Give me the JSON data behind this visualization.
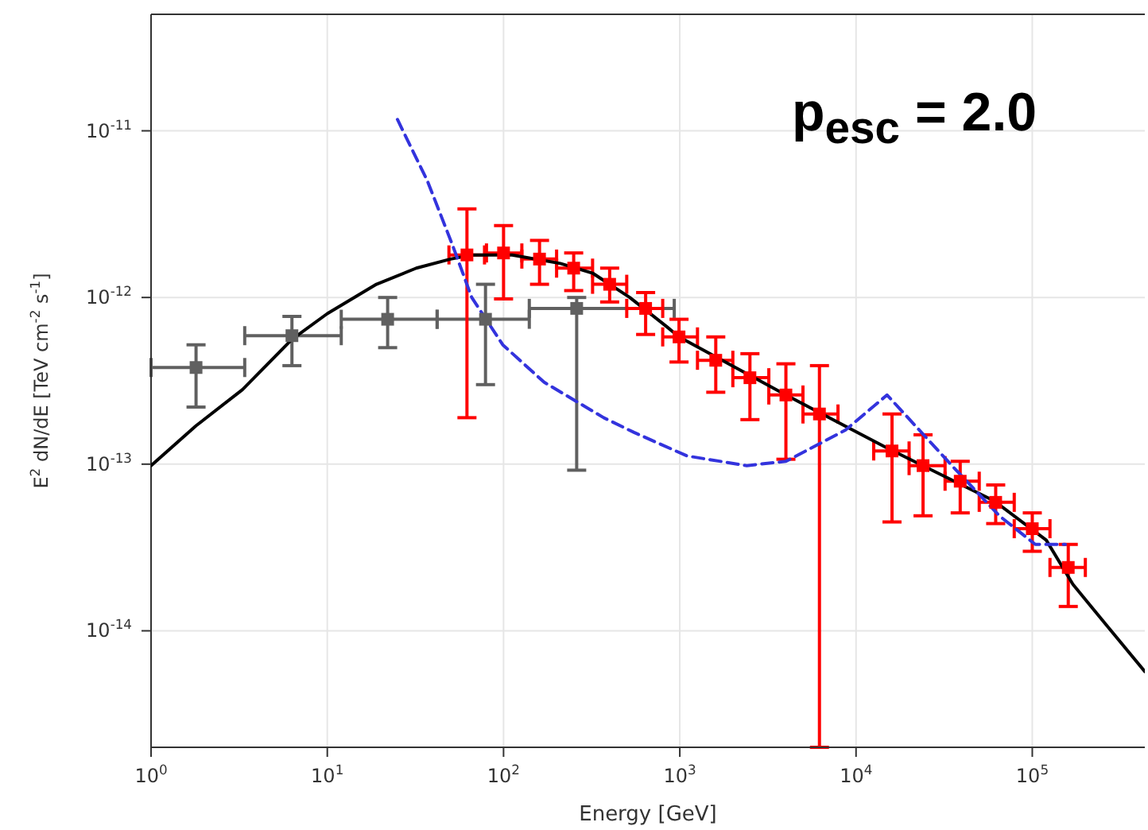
{
  "chart_data": {
    "type": "scatter",
    "xlabel": "Energy [GeV]",
    "ylabel": "E$^{2}$ dN/dE [TeV cm$^{-2}$ s$^{-1}$]",
    "annotations": [
      "p$_{esc}$ = 2.0"
    ],
    "log": "xy",
    "grid": true,
    "xlim": [
      1,
      435000
    ],
    "ylim": [
      2e-15,
      5e-11
    ],
    "xticks": [
      {
        "value": 1,
        "label": "10$^{0}$"
      },
      {
        "value": 10,
        "label": "10$^{1}$"
      },
      {
        "value": 100,
        "label": "10$^{2}$"
      },
      {
        "value": 1000,
        "label": "10$^{3}$"
      },
      {
        "value": 10000,
        "label": "10$^{4}$"
      },
      {
        "value": 100000,
        "label": "10$^{5}$"
      }
    ],
    "yticks": [
      {
        "value": 1e-14,
        "label": "10$^{-14}$"
      },
      {
        "value": 1e-13,
        "label": "10$^{-13}$"
      },
      {
        "value": 1e-12,
        "label": "10$^{-12}$"
      },
      {
        "value": 1e-11,
        "label": "10$^{-11}$"
      }
    ],
    "series": [
      {
        "type": "line",
        "color": "#000000",
        "line_style": "solid",
        "x": [
          1,
          1.8,
          3.3,
          6.3,
          10,
          19,
          32,
          50,
          66,
          112,
          210,
          320,
          520,
          840,
          990,
          4000,
          15000,
          61000,
          120000,
          170000,
          260000,
          435000
        ],
        "values": [
          9.8e-14,
          1.7e-13,
          2.8e-13,
          5.6e-13,
          8e-13,
          1.2e-12,
          1.5e-12,
          1.7e-12,
          1.8e-12,
          1.8e-12,
          1.6e-12,
          1.4e-12,
          1e-12,
          6.7e-13,
          5.8e-13,
          2.6e-13,
          1.25e-13,
          6e-14,
          3.5e-14,
          1.9e-14,
          1.1e-14,
          5.7e-15
        ]
      },
      {
        "type": "line",
        "color": "#3333dd",
        "line_style": "dashed",
        "x": [
          25,
          37,
          51,
          66,
          99,
          170,
          370,
          550,
          1100,
          2400,
          4000,
          8700,
          15000,
          35000,
          65000,
          104000,
          154000
        ],
        "values": [
          1.17e-11,
          5e-12,
          2.1e-12,
          1e-12,
          5.2e-13,
          3.1e-13,
          1.9e-13,
          1.55e-13,
          1.12e-13,
          9.8e-14,
          1.04e-13,
          1.6e-13,
          2.6e-13,
          9.8e-14,
          4.9e-14,
          3.3e-14,
          3.3e-14
        ]
      },
      {
        "marker": "square",
        "color": "#606060",
        "x": [
          1.8,
          6.3,
          22,
          79,
          260
        ],
        "values": [
          3.8e-13,
          5.9e-13,
          7.4e-13,
          7.4e-13,
          8.6e-13
        ],
        "errors": [
          [
            2.2e-13,
            5.2e-13
          ],
          [
            3.9e-13,
            7.7e-13
          ],
          [
            5e-13,
            1e-12
          ],
          [
            3e-13,
            1.2e-12
          ],
          [
            9.2e-14,
            1e-12
          ]
        ],
        "xerrors": [
          [
            1,
            3.4
          ],
          [
            3.4,
            12
          ],
          [
            12,
            42
          ],
          [
            42,
            140
          ],
          [
            140,
            930
          ]
        ]
      },
      {
        "marker": "square",
        "color": "#ff0000",
        "x": [
          62,
          100,
          160,
          250,
          400,
          640,
          990,
          1600,
          2500,
          4000,
          6200,
          16000,
          24000,
          39000,
          62000,
          100000,
          160000
        ],
        "values": [
          1.8e-12,
          1.85e-12,
          1.7e-12,
          1.5e-12,
          1.2e-12,
          8.6e-13,
          5.8e-13,
          4.2e-13,
          3.3e-13,
          2.6e-13,
          2e-13,
          1.2e-13,
          9.8e-14,
          7.9e-14,
          5.9e-14,
          4.1e-14,
          2.4e-14
        ],
        "errors": [
          [
            1.9e-13,
            3.4e-12
          ],
          [
            9.8e-13,
            2.7e-12
          ],
          [
            1.2e-12,
            2.2e-12
          ],
          [
            1.1e-12,
            1.85e-12
          ],
          [
            9.4e-13,
            1.5e-12
          ],
          [
            6e-13,
            1.07e-12
          ],
          [
            4.1e-13,
            7.4e-13
          ],
          [
            2.7e-13,
            5.8e-13
          ],
          [
            1.85e-13,
            4.6e-13
          ],
          [
            1.07e-13,
            4e-13
          ],
          [
            2e-15,
            3.9e-13
          ],
          [
            4.5e-14,
            2e-13
          ],
          [
            4.9e-14,
            1.5e-13
          ],
          [
            5.1e-14,
            1.04e-13
          ],
          [
            4.4e-14,
            7.5e-14
          ],
          [
            3e-14,
            5.1e-14
          ],
          [
            1.4e-14,
            3.3e-14
          ]
        ],
        "xerrors": [
          [
            49,
            78
          ],
          [
            80,
            127
          ],
          [
            127,
            200
          ],
          [
            200,
            320
          ],
          [
            320,
            500
          ],
          [
            500,
            800
          ],
          [
            800,
            1260
          ],
          [
            1260,
            2000
          ],
          [
            2000,
            3200
          ],
          [
            3200,
            5000
          ],
          [
            5000,
            7900
          ],
          [
            12600,
            20000
          ],
          [
            20000,
            32000
          ],
          [
            32000,
            50000
          ],
          [
            50000,
            79000
          ],
          [
            79000,
            126000
          ],
          [
            126000,
            200000
          ]
        ]
      }
    ]
  }
}
